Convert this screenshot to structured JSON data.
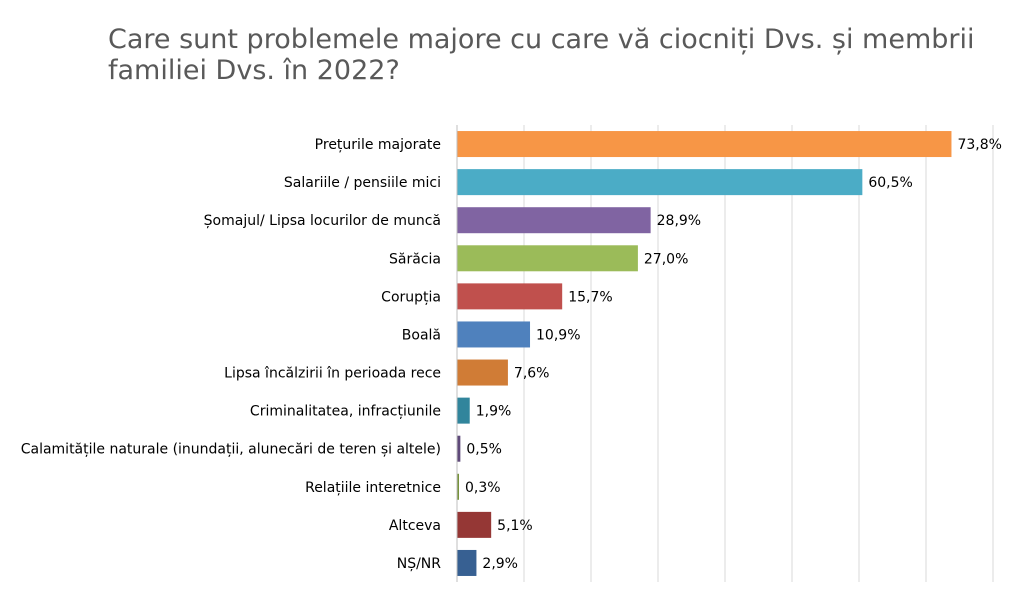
{
  "chart_data": {
    "type": "bar",
    "orientation": "horizontal",
    "title": "Care sunt problemele majore cu care vă ciocniți Dvs. și membrii familiei Dvs. în 2022?",
    "categories": [
      "Prețurile majorate",
      "Salariile / pensiile mici",
      "Șomajul/ Lipsa locurilor de muncă",
      "Sărăcia",
      "Corupția",
      "Boală",
      "Lipsa încălzirii în perioada rece",
      "Criminalitatea, infracțiunile",
      "Calamitățile naturale (inundații, alunecări de teren și altele)",
      "Relațiile interetnice",
      "Altceva",
      "NȘ/NR"
    ],
    "values": [
      73.8,
      60.5,
      28.9,
      27.0,
      15.7,
      10.9,
      7.6,
      1.9,
      0.5,
      0.3,
      5.1,
      2.9
    ],
    "value_labels": [
      "73,8%",
      "60,5%",
      "28,9%",
      "27,0%",
      "15,7%",
      "10,9%",
      "7,6%",
      "1,9%",
      "0,5%",
      "0,3%",
      "5,1%",
      "2,9%"
    ],
    "colors": [
      "#F79646",
      "#4BACC6",
      "#8064A2",
      "#9BBB59",
      "#C0504D",
      "#4F81BD",
      "#D07C36",
      "#31859C",
      "#5F497A",
      "#77933C",
      "#953735",
      "#376092"
    ],
    "xlim": [
      0,
      80
    ],
    "grid": true,
    "legend": "none"
  }
}
